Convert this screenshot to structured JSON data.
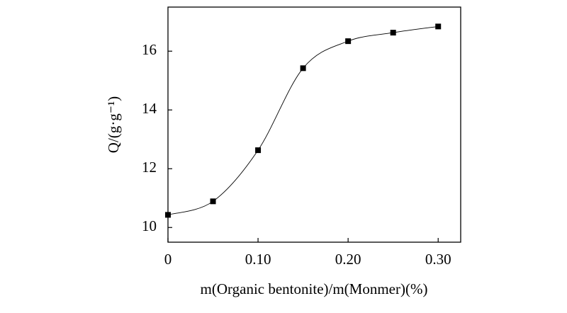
{
  "chart_data": {
    "type": "line",
    "x_label": "m(Organic bentonite)/m(Monmer)(%)",
    "y_label": "Q/(g·g⁻¹)",
    "x": [
      0,
      0.05,
      0.1,
      0.15,
      0.2,
      0.25,
      0.3
    ],
    "series": [
      {
        "color": "#000000",
        "marker": "square",
        "smooth": true,
        "values": [
          10.43,
          10.89,
          12.63,
          15.42,
          16.34,
          16.63,
          16.84
        ]
      }
    ],
    "xlim": [
      0,
      0.325
    ],
    "ylim": [
      9.5,
      17.5
    ],
    "xticks": [
      0,
      {
        "value": 0.1,
        "label": "0.10"
      },
      {
        "value": 0.2,
        "label": "0.20"
      },
      {
        "value": 0.3,
        "label": "0.30"
      }
    ],
    "yticks": [
      10,
      12,
      14,
      16
    ],
    "grid": false
  }
}
